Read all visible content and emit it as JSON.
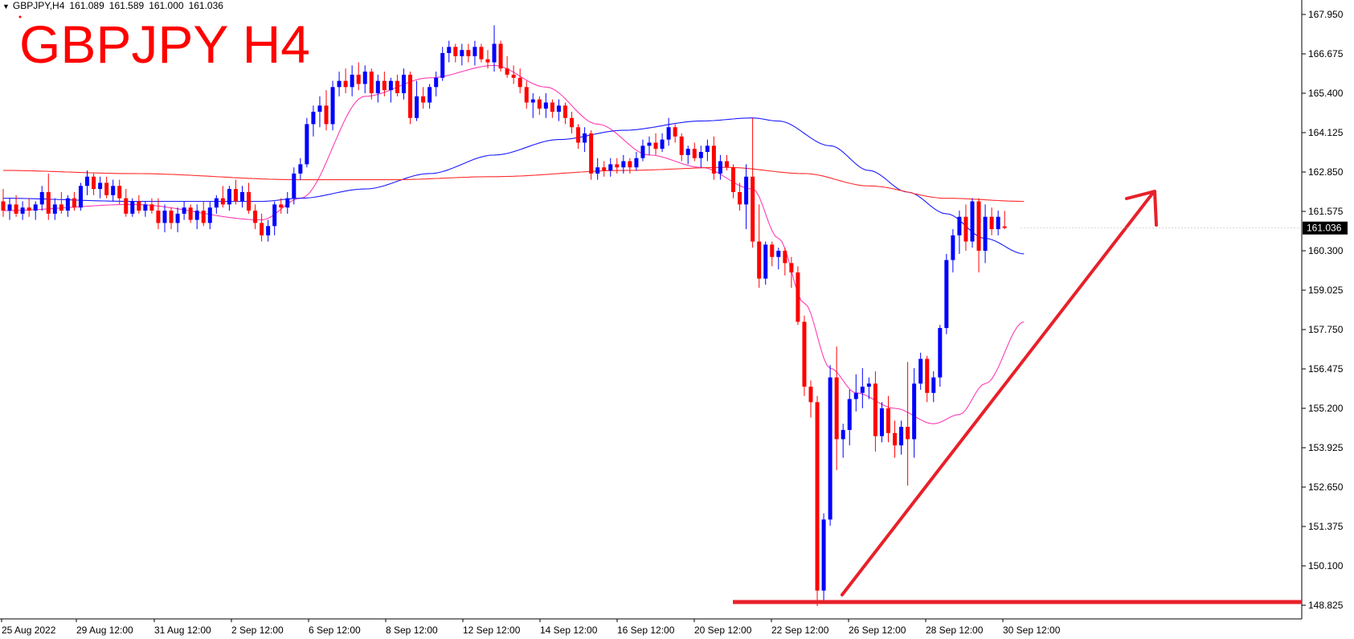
{
  "header": {
    "symbol": "GBPJPY,H4",
    "open": "161.089",
    "high": "161.589",
    "low": "161.000",
    "close": "161.036"
  },
  "annotation_title": "GBPJPY H4",
  "colors": {
    "bull": "#0000ff",
    "bear": "#ff0000",
    "ma_fast": "#ff3bb4",
    "ma_mid": "#1a1aff",
    "ma_slow": "#ff2a2a",
    "annotation": "#e8202a",
    "axis": "#000000",
    "price_tag_bg": "#000000",
    "price_tag_fg": "#ffffff"
  },
  "chart_data": {
    "type": "candlestick",
    "title": "GBPJPY H4",
    "ylim": [
      148.5,
      168.3
    ],
    "y_ticks": [
      "167.950",
      "166.675",
      "165.400",
      "164.125",
      "162.850",
      "161.575",
      "160.300",
      "159.025",
      "157.750",
      "156.475",
      "155.200",
      "153.925",
      "152.650",
      "151.375",
      "150.100",
      "148.825"
    ],
    "x_ticks": [
      "25 Aug 2022",
      "29 Aug 12:00",
      "31 Aug 12:00",
      "2 Sep 12:00",
      "6 Sep 12:00",
      "8 Sep 12:00",
      "12 Sep 12:00",
      "14 Sep 12:00",
      "16 Sep 12:00",
      "20 Sep 12:00",
      "22 Sep 12:00",
      "26 Sep 12:00",
      "28 Sep 12:00",
      "30 Sep 12:00"
    ],
    "current_price": "161.036",
    "candles": [
      {
        "o": 161.9,
        "h": 162.3,
        "l": 161.4,
        "c": 161.6
      },
      {
        "o": 161.6,
        "h": 162.0,
        "l": 161.3,
        "c": 161.8
      },
      {
        "o": 161.8,
        "h": 162.1,
        "l": 161.4,
        "c": 161.5
      },
      {
        "o": 161.5,
        "h": 161.9,
        "l": 161.3,
        "c": 161.7
      },
      {
        "o": 161.7,
        "h": 162.0,
        "l": 161.4,
        "c": 161.6
      },
      {
        "o": 161.6,
        "h": 161.9,
        "l": 161.3,
        "c": 161.8
      },
      {
        "o": 161.8,
        "h": 162.4,
        "l": 161.6,
        "c": 162.2
      },
      {
        "o": 162.2,
        "h": 162.8,
        "l": 161.3,
        "c": 161.5
      },
      {
        "o": 161.5,
        "h": 162.0,
        "l": 161.3,
        "c": 161.8
      },
      {
        "o": 161.8,
        "h": 162.2,
        "l": 161.5,
        "c": 161.6
      },
      {
        "o": 161.6,
        "h": 162.1,
        "l": 161.4,
        "c": 162.0
      },
      {
        "o": 162.0,
        "h": 162.2,
        "l": 161.6,
        "c": 161.7
      },
      {
        "o": 161.7,
        "h": 162.5,
        "l": 161.6,
        "c": 162.4
      },
      {
        "o": 162.4,
        "h": 162.9,
        "l": 162.1,
        "c": 162.7
      },
      {
        "o": 162.7,
        "h": 162.8,
        "l": 162.1,
        "c": 162.3
      },
      {
        "o": 162.3,
        "h": 162.7,
        "l": 162.0,
        "c": 162.5
      },
      {
        "o": 162.5,
        "h": 162.7,
        "l": 162.0,
        "c": 162.1
      },
      {
        "o": 162.1,
        "h": 162.6,
        "l": 161.9,
        "c": 162.4
      },
      {
        "o": 162.4,
        "h": 162.6,
        "l": 161.8,
        "c": 162.0
      },
      {
        "o": 162.0,
        "h": 162.3,
        "l": 161.4,
        "c": 161.5
      },
      {
        "o": 161.5,
        "h": 162.0,
        "l": 161.4,
        "c": 161.9
      },
      {
        "o": 161.9,
        "h": 162.1,
        "l": 161.5,
        "c": 161.6
      },
      {
        "o": 161.6,
        "h": 161.9,
        "l": 161.4,
        "c": 161.8
      },
      {
        "o": 161.8,
        "h": 162.0,
        "l": 161.5,
        "c": 161.6
      },
      {
        "o": 161.6,
        "h": 162.0,
        "l": 161.0,
        "c": 161.2
      },
      {
        "o": 161.2,
        "h": 161.8,
        "l": 160.9,
        "c": 161.6
      },
      {
        "o": 161.6,
        "h": 161.7,
        "l": 161.0,
        "c": 161.2
      },
      {
        "o": 161.2,
        "h": 161.7,
        "l": 160.9,
        "c": 161.5
      },
      {
        "o": 161.5,
        "h": 161.9,
        "l": 161.3,
        "c": 161.7
      },
      {
        "o": 161.7,
        "h": 161.8,
        "l": 161.2,
        "c": 161.3
      },
      {
        "o": 161.3,
        "h": 161.8,
        "l": 161.0,
        "c": 161.6
      },
      {
        "o": 161.6,
        "h": 161.9,
        "l": 161.1,
        "c": 161.2
      },
      {
        "o": 161.2,
        "h": 161.9,
        "l": 161.0,
        "c": 161.7
      },
      {
        "o": 161.7,
        "h": 162.1,
        "l": 161.5,
        "c": 162.0
      },
      {
        "o": 162.0,
        "h": 162.4,
        "l": 161.7,
        "c": 161.8
      },
      {
        "o": 161.8,
        "h": 162.4,
        "l": 161.6,
        "c": 162.3
      },
      {
        "o": 162.3,
        "h": 162.6,
        "l": 161.8,
        "c": 161.9
      },
      {
        "o": 161.9,
        "h": 162.4,
        "l": 161.7,
        "c": 162.2
      },
      {
        "o": 162.2,
        "h": 162.5,
        "l": 161.5,
        "c": 161.6
      },
      {
        "o": 161.6,
        "h": 161.8,
        "l": 161.0,
        "c": 161.2
      },
      {
        "o": 161.2,
        "h": 161.5,
        "l": 160.6,
        "c": 160.8
      },
      {
        "o": 160.8,
        "h": 161.3,
        "l": 160.6,
        "c": 161.1
      },
      {
        "o": 161.1,
        "h": 161.9,
        "l": 160.8,
        "c": 161.8
      },
      {
        "o": 161.8,
        "h": 162.0,
        "l": 161.5,
        "c": 161.7
      },
      {
        "o": 161.7,
        "h": 162.2,
        "l": 161.5,
        "c": 162.0
      },
      {
        "o": 162.0,
        "h": 163.0,
        "l": 161.8,
        "c": 162.8
      },
      {
        "o": 162.8,
        "h": 163.3,
        "l": 162.6,
        "c": 163.1
      },
      {
        "o": 163.1,
        "h": 164.6,
        "l": 163.0,
        "c": 164.4
      },
      {
        "o": 164.4,
        "h": 165.0,
        "l": 164.0,
        "c": 164.8
      },
      {
        "o": 164.8,
        "h": 165.3,
        "l": 164.3,
        "c": 165.0
      },
      {
        "o": 165.0,
        "h": 165.5,
        "l": 164.2,
        "c": 164.4
      },
      {
        "o": 164.4,
        "h": 165.8,
        "l": 164.2,
        "c": 165.6
      },
      {
        "o": 165.6,
        "h": 166.1,
        "l": 165.3,
        "c": 165.8
      },
      {
        "o": 165.8,
        "h": 166.2,
        "l": 165.4,
        "c": 165.6
      },
      {
        "o": 165.6,
        "h": 166.3,
        "l": 165.3,
        "c": 166.0
      },
      {
        "o": 166.0,
        "h": 166.4,
        "l": 165.5,
        "c": 165.7
      },
      {
        "o": 165.7,
        "h": 166.3,
        "l": 165.4,
        "c": 166.1
      },
      {
        "o": 166.1,
        "h": 166.2,
        "l": 165.2,
        "c": 165.4
      },
      {
        "o": 165.4,
        "h": 166.0,
        "l": 165.1,
        "c": 165.8
      },
      {
        "o": 165.8,
        "h": 166.1,
        "l": 165.3,
        "c": 165.5
      },
      {
        "o": 165.5,
        "h": 165.9,
        "l": 165.1,
        "c": 165.8
      },
      {
        "o": 165.8,
        "h": 166.0,
        "l": 165.3,
        "c": 165.4
      },
      {
        "o": 165.4,
        "h": 166.2,
        "l": 165.2,
        "c": 166.0
      },
      {
        "o": 166.0,
        "h": 166.1,
        "l": 164.4,
        "c": 164.6
      },
      {
        "o": 164.6,
        "h": 165.8,
        "l": 164.5,
        "c": 165.3
      },
      {
        "o": 165.3,
        "h": 165.6,
        "l": 164.9,
        "c": 165.1
      },
      {
        "o": 165.1,
        "h": 165.7,
        "l": 164.9,
        "c": 165.6
      },
      {
        "o": 165.6,
        "h": 166.1,
        "l": 165.3,
        "c": 165.9
      },
      {
        "o": 165.9,
        "h": 166.9,
        "l": 165.8,
        "c": 166.7
      },
      {
        "o": 166.7,
        "h": 167.1,
        "l": 166.4,
        "c": 166.9
      },
      {
        "o": 166.9,
        "h": 167.0,
        "l": 166.4,
        "c": 166.6
      },
      {
        "o": 166.6,
        "h": 167.0,
        "l": 166.3,
        "c": 166.8
      },
      {
        "o": 166.8,
        "h": 167.0,
        "l": 166.4,
        "c": 166.6
      },
      {
        "o": 166.6,
        "h": 167.1,
        "l": 166.3,
        "c": 166.9
      },
      {
        "o": 166.9,
        "h": 167.0,
        "l": 166.4,
        "c": 166.5
      },
      {
        "o": 166.5,
        "h": 166.8,
        "l": 166.2,
        "c": 166.4
      },
      {
        "o": 166.4,
        "h": 167.6,
        "l": 166.1,
        "c": 167.0
      },
      {
        "o": 167.0,
        "h": 167.1,
        "l": 166.1,
        "c": 166.2
      },
      {
        "o": 166.2,
        "h": 166.6,
        "l": 165.9,
        "c": 166.0
      },
      {
        "o": 166.0,
        "h": 166.3,
        "l": 165.7,
        "c": 165.9
      },
      {
        "o": 165.9,
        "h": 166.2,
        "l": 165.4,
        "c": 165.6
      },
      {
        "o": 165.6,
        "h": 165.8,
        "l": 164.9,
        "c": 165.1
      },
      {
        "o": 165.1,
        "h": 165.4,
        "l": 164.6,
        "c": 165.2
      },
      {
        "o": 165.2,
        "h": 165.3,
        "l": 164.7,
        "c": 164.9
      },
      {
        "o": 164.9,
        "h": 165.4,
        "l": 164.6,
        "c": 165.1
      },
      {
        "o": 165.1,
        "h": 165.2,
        "l": 164.6,
        "c": 164.8
      },
      {
        "o": 164.8,
        "h": 165.2,
        "l": 164.5,
        "c": 165.0
      },
      {
        "o": 165.0,
        "h": 165.1,
        "l": 164.4,
        "c": 164.6
      },
      {
        "o": 164.6,
        "h": 164.8,
        "l": 164.1,
        "c": 164.3
      },
      {
        "o": 164.3,
        "h": 164.4,
        "l": 163.6,
        "c": 163.8
      },
      {
        "o": 163.8,
        "h": 164.3,
        "l": 163.5,
        "c": 164.1
      },
      {
        "o": 164.1,
        "h": 164.2,
        "l": 162.6,
        "c": 162.8
      },
      {
        "o": 162.8,
        "h": 163.3,
        "l": 162.6,
        "c": 163.0
      },
      {
        "o": 163.0,
        "h": 163.2,
        "l": 162.7,
        "c": 162.9
      },
      {
        "o": 162.9,
        "h": 163.3,
        "l": 162.7,
        "c": 163.1
      },
      {
        "o": 163.1,
        "h": 163.3,
        "l": 162.8,
        "c": 163.0
      },
      {
        "o": 163.0,
        "h": 163.4,
        "l": 162.8,
        "c": 163.2
      },
      {
        "o": 163.2,
        "h": 163.3,
        "l": 162.8,
        "c": 163.0
      },
      {
        "o": 163.0,
        "h": 163.5,
        "l": 162.9,
        "c": 163.3
      },
      {
        "o": 163.3,
        "h": 163.9,
        "l": 163.2,
        "c": 163.7
      },
      {
        "o": 163.7,
        "h": 164.0,
        "l": 163.4,
        "c": 163.8
      },
      {
        "o": 163.8,
        "h": 164.1,
        "l": 163.4,
        "c": 163.6
      },
      {
        "o": 163.6,
        "h": 164.1,
        "l": 163.5,
        "c": 163.9
      },
      {
        "o": 163.9,
        "h": 164.6,
        "l": 163.7,
        "c": 164.3
      },
      {
        "o": 164.3,
        "h": 164.4,
        "l": 163.8,
        "c": 164.0
      },
      {
        "o": 164.0,
        "h": 164.1,
        "l": 163.2,
        "c": 163.4
      },
      {
        "o": 163.4,
        "h": 163.7,
        "l": 163.1,
        "c": 163.6
      },
      {
        "o": 163.6,
        "h": 163.8,
        "l": 163.2,
        "c": 163.3
      },
      {
        "o": 163.3,
        "h": 163.7,
        "l": 163.0,
        "c": 163.5
      },
      {
        "o": 163.5,
        "h": 163.9,
        "l": 163.2,
        "c": 163.7
      },
      {
        "o": 163.7,
        "h": 164.0,
        "l": 162.6,
        "c": 162.8
      },
      {
        "o": 162.8,
        "h": 163.4,
        "l": 162.6,
        "c": 163.2
      },
      {
        "o": 163.2,
        "h": 163.4,
        "l": 162.9,
        "c": 163.0
      },
      {
        "o": 163.0,
        "h": 163.1,
        "l": 162.0,
        "c": 162.2
      },
      {
        "o": 162.2,
        "h": 162.5,
        "l": 161.6,
        "c": 161.8
      },
      {
        "o": 161.8,
        "h": 163.1,
        "l": 161.0,
        "c": 162.7
      },
      {
        "o": 162.7,
        "h": 164.6,
        "l": 160.4,
        "c": 160.6
      },
      {
        "o": 160.6,
        "h": 161.8,
        "l": 159.1,
        "c": 159.4
      },
      {
        "o": 159.4,
        "h": 160.6,
        "l": 159.2,
        "c": 160.5
      },
      {
        "o": 160.5,
        "h": 160.6,
        "l": 159.8,
        "c": 160.1
      },
      {
        "o": 160.1,
        "h": 160.4,
        "l": 159.7,
        "c": 160.3
      },
      {
        "o": 160.3,
        "h": 160.4,
        "l": 159.5,
        "c": 159.9
      },
      {
        "o": 159.9,
        "h": 160.1,
        "l": 159.1,
        "c": 159.6
      },
      {
        "o": 159.6,
        "h": 159.8,
        "l": 157.9,
        "c": 158.0
      },
      {
        "o": 158.0,
        "h": 158.2,
        "l": 155.6,
        "c": 155.9
      },
      {
        "o": 155.9,
        "h": 156.1,
        "l": 154.9,
        "c": 155.4
      },
      {
        "o": 155.4,
        "h": 155.6,
        "l": 148.8,
        "c": 149.3
      },
      {
        "o": 149.3,
        "h": 151.8,
        "l": 148.9,
        "c": 151.6
      },
      {
        "o": 151.6,
        "h": 156.6,
        "l": 151.4,
        "c": 156.2
      },
      {
        "o": 156.2,
        "h": 157.2,
        "l": 153.2,
        "c": 154.2
      },
      {
        "o": 154.2,
        "h": 154.7,
        "l": 153.6,
        "c": 154.5
      },
      {
        "o": 154.5,
        "h": 155.8,
        "l": 154.0,
        "c": 155.5
      },
      {
        "o": 155.5,
        "h": 156.3,
        "l": 155.1,
        "c": 155.7
      },
      {
        "o": 155.7,
        "h": 156.5,
        "l": 155.2,
        "c": 155.9
      },
      {
        "o": 155.9,
        "h": 156.2,
        "l": 155.5,
        "c": 156.0
      },
      {
        "o": 156.0,
        "h": 156.4,
        "l": 153.8,
        "c": 154.3
      },
      {
        "o": 154.3,
        "h": 155.4,
        "l": 154.1,
        "c": 155.2
      },
      {
        "o": 155.2,
        "h": 155.6,
        "l": 154.1,
        "c": 154.4
      },
      {
        "o": 154.4,
        "h": 154.8,
        "l": 153.6,
        "c": 154.0
      },
      {
        "o": 154.0,
        "h": 154.8,
        "l": 153.7,
        "c": 154.6
      },
      {
        "o": 154.6,
        "h": 156.7,
        "l": 152.7,
        "c": 154.2
      },
      {
        "o": 154.2,
        "h": 156.5,
        "l": 153.6,
        "c": 156.0
      },
      {
        "o": 156.0,
        "h": 157.0,
        "l": 155.8,
        "c": 156.8
      },
      {
        "o": 156.8,
        "h": 156.9,
        "l": 155.4,
        "c": 155.7
      },
      {
        "o": 155.7,
        "h": 156.4,
        "l": 155.4,
        "c": 156.2
      },
      {
        "o": 156.2,
        "h": 157.9,
        "l": 155.9,
        "c": 157.8
      },
      {
        "o": 157.8,
        "h": 160.2,
        "l": 157.6,
        "c": 160.0
      },
      {
        "o": 160.0,
        "h": 161.0,
        "l": 159.6,
        "c": 160.8
      },
      {
        "o": 160.8,
        "h": 161.6,
        "l": 160.2,
        "c": 161.4
      },
      {
        "o": 161.4,
        "h": 161.8,
        "l": 160.3,
        "c": 160.6
      },
      {
        "o": 160.6,
        "h": 162.0,
        "l": 160.4,
        "c": 161.9
      },
      {
        "o": 161.9,
        "h": 162.0,
        "l": 159.6,
        "c": 160.3
      },
      {
        "o": 160.3,
        "h": 161.8,
        "l": 159.9,
        "c": 161.4
      },
      {
        "o": 161.4,
        "h": 161.7,
        "l": 160.8,
        "c": 161.0
      },
      {
        "o": 161.0,
        "h": 161.6,
        "l": 160.8,
        "c": 161.4
      },
      {
        "o": 161.09,
        "h": 161.59,
        "l": 161.0,
        "c": 161.04
      }
    ],
    "series": [
      {
        "type": "ma",
        "color_key": "ma_fast",
        "anchors": [
          [
            0,
            161.6
          ],
          [
            20,
            161.8
          ],
          [
            40,
            161.3
          ],
          [
            46,
            162.0
          ],
          [
            56,
            165.3
          ],
          [
            66,
            165.9
          ],
          [
            76,
            166.3
          ],
          [
            84,
            165.6
          ],
          [
            92,
            164.4
          ],
          [
            100,
            163.4
          ],
          [
            108,
            163.0
          ],
          [
            116,
            162.3
          ],
          [
            120,
            160.7
          ],
          [
            124,
            158.6
          ],
          [
            128,
            156.5
          ],
          [
            132,
            155.7
          ],
          [
            138,
            155.2
          ],
          [
            144,
            154.7
          ],
          [
            148,
            155.0
          ],
          [
            152,
            156.0
          ],
          [
            158,
            158.0
          ]
        ]
      },
      {
        "type": "ma",
        "color_key": "ma_mid",
        "anchors": [
          [
            0,
            162.0
          ],
          [
            20,
            161.9
          ],
          [
            40,
            161.9
          ],
          [
            46,
            162.0
          ],
          [
            56,
            162.3
          ],
          [
            66,
            162.8
          ],
          [
            76,
            163.4
          ],
          [
            86,
            163.9
          ],
          [
            96,
            164.2
          ],
          [
            108,
            164.5
          ],
          [
            116,
            164.6
          ],
          [
            120,
            164.5
          ],
          [
            128,
            163.7
          ],
          [
            134,
            162.9
          ],
          [
            140,
            162.2
          ],
          [
            146,
            161.5
          ],
          [
            152,
            160.7
          ],
          [
            158,
            160.2
          ]
        ]
      },
      {
        "type": "ma",
        "color_key": "ma_slow",
        "anchors": [
          [
            0,
            162.9
          ],
          [
            20,
            162.8
          ],
          [
            46,
            162.6
          ],
          [
            60,
            162.6
          ],
          [
            76,
            162.7
          ],
          [
            96,
            162.9
          ],
          [
            112,
            163.0
          ],
          [
            124,
            162.8
          ],
          [
            134,
            162.4
          ],
          [
            146,
            162.0
          ],
          [
            158,
            161.9
          ]
        ]
      }
    ]
  }
}
